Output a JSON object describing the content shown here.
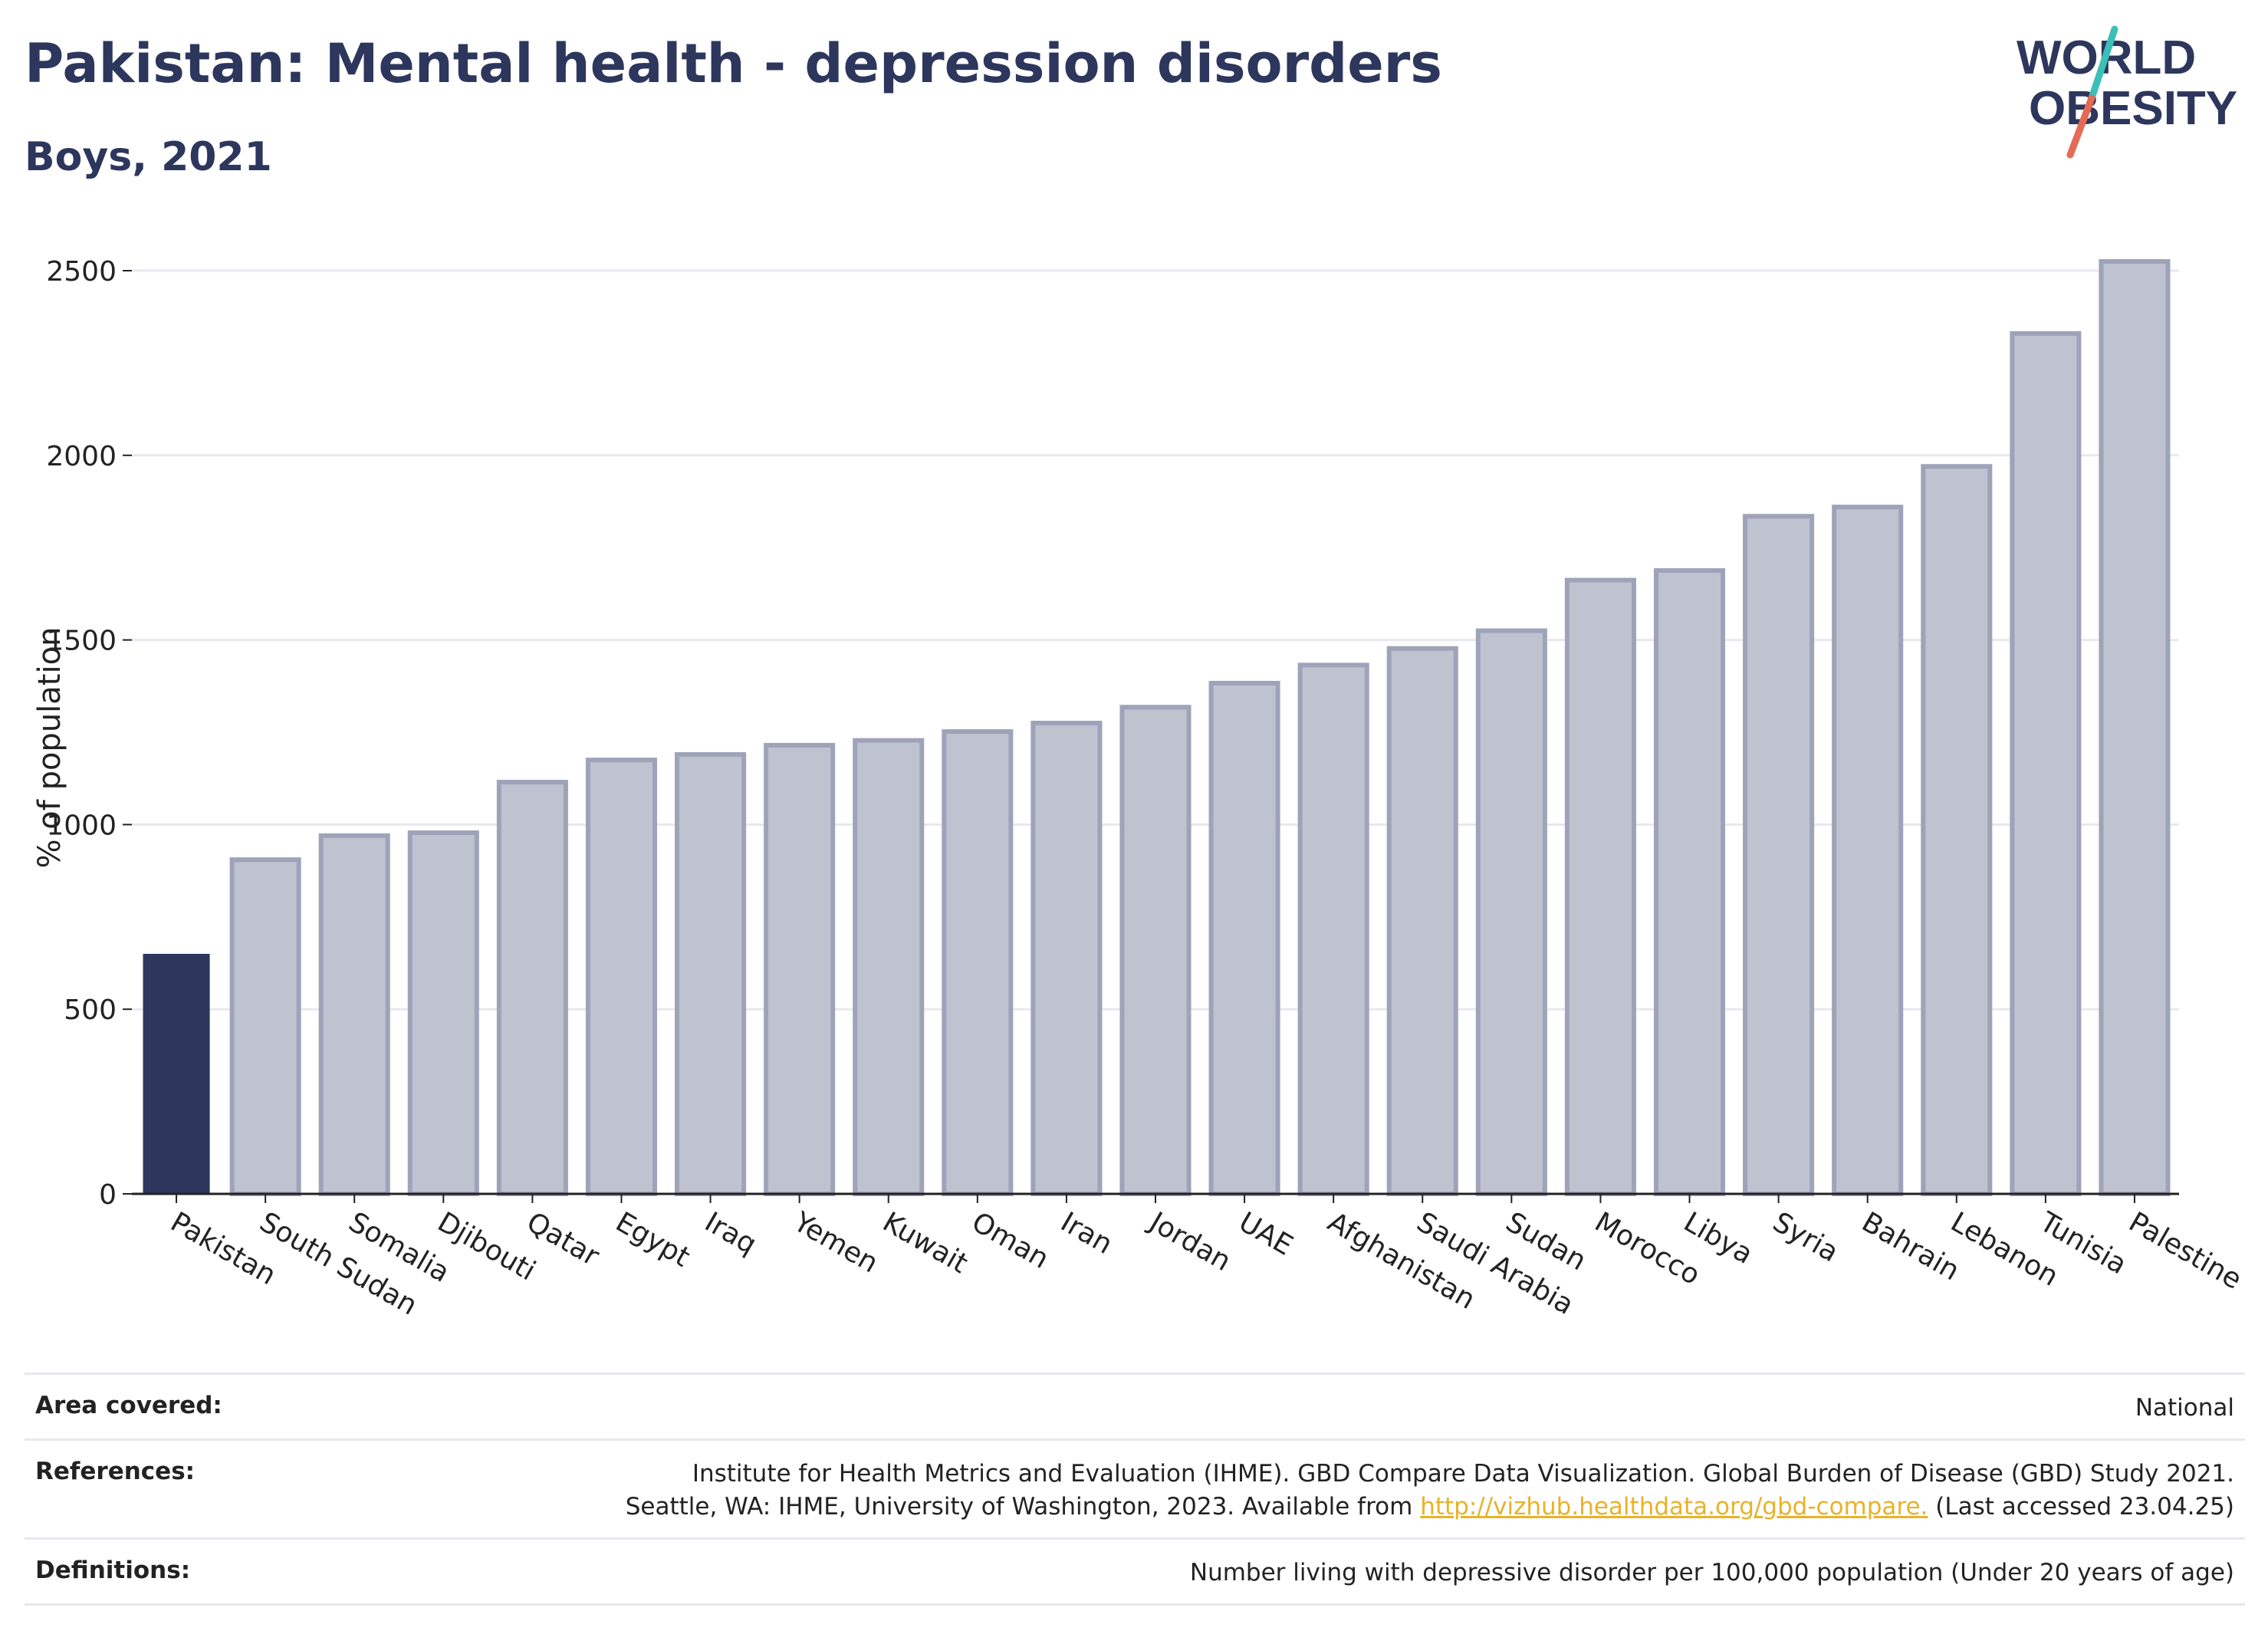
{
  "header": {
    "title": "Pakistan: Mental health - depression disorders",
    "subtitle": "Boys, 2021"
  },
  "logo": {
    "line1": "WORLD",
    "line2": "OBESITY"
  },
  "colors": {
    "highlight": "#2d365c",
    "bar_fill": "#bfc3d0",
    "bar_stroke": "#9ea3b9",
    "grid": "#e8e9ee",
    "logo_teal": "#3bbfb7",
    "logo_red": "#e46b56"
  },
  "chart_data": {
    "type": "bar",
    "title": "Pakistan: Mental health - depression disorders",
    "subtitle": "Boys, 2021",
    "ylabel": "% of population",
    "xlabel": "",
    "ylim": [
      0,
      2600
    ],
    "yticks": [
      0,
      500,
      1000,
      1500,
      2000,
      2500
    ],
    "grid": true,
    "highlight": "Pakistan",
    "categories": [
      "Pakistan",
      "South Sudan",
      "Somalia",
      "Djibouti",
      "Qatar",
      "Egypt",
      "Iraq",
      "Yemen",
      "Kuwait",
      "Oman",
      "Iran",
      "Jordan",
      "UAE",
      "Afghanistan",
      "Saudi Arabia",
      "Sudan",
      "Morocco",
      "Libya",
      "Syria",
      "Bahrain",
      "Lebanon",
      "Tunisia",
      "Palestine"
    ],
    "values": [
      650,
      905,
      970,
      978,
      1115,
      1175,
      1190,
      1215,
      1228,
      1252,
      1275,
      1318,
      1383,
      1432,
      1477,
      1525,
      1662,
      1688,
      1835,
      1860,
      1970,
      2330,
      2525
    ]
  },
  "footer": {
    "area_label": "Area covered:",
    "area_value": "National",
    "references_label": "References:",
    "references_line1": "Institute for Health Metrics and Evaluation (IHME). GBD Compare Data Visualization. Global Burden of Disease (GBD) Study 2021.",
    "references_line2_pre": "Seattle, WA: IHME, University of Washington, 2023. Available from ",
    "references_link": "http://vizhub.healthdata.org/gbd-compare.",
    "references_line2_post": " (Last accessed 23.04.25)",
    "definitions_label": "Definitions:",
    "definitions_value": "Number living with depressive disorder per 100,000 population (Under 20 years of age)"
  }
}
